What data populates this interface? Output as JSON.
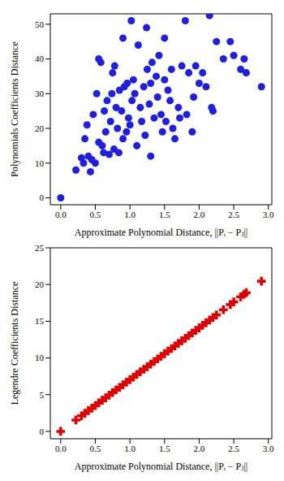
{
  "chart_data": [
    {
      "type": "scatter",
      "x_label": "Approximate Polynomial Distance, ||Pᵢ − Pⱼ||",
      "y_label": "Polynomials Coefficients Distance",
      "color": "#1f1fe0",
      "marker": "circle",
      "x": [
        0,
        0.22,
        0.3,
        0.33,
        0.35,
        0.38,
        0.4,
        0.43,
        0.45,
        0.47,
        0.5,
        0.52,
        0.55,
        0.55,
        0.58,
        0.6,
        0.62,
        0.63,
        0.65,
        0.67,
        0.7,
        0.72,
        0.74,
        0.75,
        0.77,
        0.78,
        0.8,
        0.82,
        0.84,
        0.85,
        0.88,
        0.9,
        0.9,
        0.92,
        0.95,
        0.96,
        0.98,
        1.0,
        1.02,
        1.03,
        1.05,
        1.07,
        1.1,
        1.12,
        1.15,
        1.17,
        1.2,
        1.22,
        1.24,
        1.25,
        1.28,
        1.3,
        1.3,
        1.32,
        1.35,
        1.38,
        1.4,
        1.42,
        1.45,
        1.47,
        1.5,
        1.5,
        1.52,
        1.55,
        1.58,
        1.6,
        1.62,
        1.65,
        1.7,
        1.72,
        1.75,
        1.8,
        1.82,
        1.85,
        1.9,
        1.92,
        1.95,
        2.0,
        2.05,
        2.1,
        2.15,
        2.18,
        2.2,
        2.25,
        2.35,
        2.45,
        2.5,
        2.6,
        2.65,
        2.68,
        2.9
      ],
      "values": [
        0,
        8,
        11.5,
        10,
        17,
        21,
        12,
        7.5,
        11,
        24,
        10,
        30,
        16,
        40,
        39,
        15,
        13,
        25,
        19,
        28,
        12.5,
        22,
        30,
        36,
        14,
        38,
        26,
        20,
        13,
        31,
        25,
        17,
        46,
        32,
        19,
        33,
        23,
        21,
        51,
        28,
        34,
        30,
        15,
        44,
        26,
        22,
        32,
        18,
        49,
        37,
        27,
        12,
        33,
        39,
        23,
        35,
        29,
        41,
        24,
        19,
        46,
        34,
        22,
        31,
        28,
        37,
        20,
        17,
        26,
        23,
        38,
        51,
        24,
        36,
        19,
        29,
        38,
        33,
        36,
        32,
        52.5,
        26,
        25,
        45,
        40,
        45,
        41,
        37,
        40,
        36,
        32
      ],
      "xlim": [
        -0.15,
        3.05
      ],
      "ylim": [
        -2,
        53
      ],
      "xticks": [
        {
          "value": 0,
          "label": "0.0"
        },
        {
          "value": 0.5,
          "label": "0.5"
        },
        {
          "value": 1,
          "label": "1.0"
        },
        {
          "value": 1.5,
          "label": "1.5"
        },
        {
          "value": 2,
          "label": "2.0"
        },
        {
          "value": 2.5,
          "label": "2.5"
        },
        {
          "value": 3,
          "label": "3.0"
        }
      ],
      "yticks": [
        0,
        10,
        20,
        30,
        40,
        50
      ]
    },
    {
      "type": "scatter",
      "x_label": "Approximate Polynomial Distance, ||Pᵢ − Pⱼ||",
      "y_label": "Legendre Coefficients Distance",
      "color": "#e00000",
      "marker": "plus",
      "x": [
        0,
        0.22,
        0.3,
        0.35,
        0.4,
        0.45,
        0.5,
        0.55,
        0.6,
        0.65,
        0.7,
        0.75,
        0.8,
        0.85,
        0.9,
        0.95,
        1.0,
        1.05,
        1.1,
        1.15,
        1.2,
        1.25,
        1.3,
        1.35,
        1.4,
        1.45,
        1.5,
        1.55,
        1.6,
        1.65,
        1.7,
        1.75,
        1.8,
        1.85,
        1.9,
        1.95,
        2.0,
        2.05,
        2.1,
        2.15,
        2.2,
        2.25,
        2.35,
        2.45,
        2.5,
        2.6,
        2.65,
        2.68,
        2.9
      ],
      "values": [
        0,
        1.55,
        2.12,
        2.47,
        2.82,
        3.17,
        3.53,
        3.88,
        4.23,
        4.58,
        4.94,
        5.29,
        5.64,
        5.99,
        6.35,
        6.7,
        7.05,
        7.4,
        7.76,
        8.11,
        8.46,
        8.81,
        9.17,
        9.52,
        9.87,
        10.22,
        10.58,
        10.93,
        11.28,
        11.63,
        11.99,
        12.34,
        12.69,
        13.04,
        13.4,
        13.75,
        14.1,
        14.45,
        14.81,
        15.16,
        15.51,
        15.86,
        16.57,
        17.27,
        17.63,
        18.33,
        18.68,
        18.89,
        20.45
      ],
      "xlim": [
        -0.15,
        3.05
      ],
      "ylim": [
        -1,
        25
      ],
      "xticks": [
        {
          "value": 0,
          "label": "0.0"
        },
        {
          "value": 0.5,
          "label": "0.5"
        },
        {
          "value": 1,
          "label": "1.0"
        },
        {
          "value": 1.5,
          "label": "1.5"
        },
        {
          "value": 2,
          "label": "2.0"
        },
        {
          "value": 2.5,
          "label": "2.5"
        },
        {
          "value": 3,
          "label": "3.0"
        }
      ],
      "yticks": [
        0,
        5,
        10,
        15,
        20,
        25
      ]
    }
  ]
}
